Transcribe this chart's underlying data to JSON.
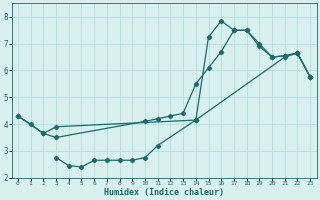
{
  "line1_x": [
    0,
    1,
    2,
    3,
    10,
    11,
    12,
    13,
    14,
    15,
    16,
    17,
    18,
    19,
    20,
    21,
    22,
    23
  ],
  "line1_y": [
    4.3,
    4.0,
    3.65,
    3.5,
    4.1,
    4.2,
    4.3,
    4.4,
    5.5,
    6.1,
    6.7,
    7.5,
    7.5,
    7.0,
    6.5,
    6.55,
    6.65,
    5.75
  ],
  "line2_x": [
    0,
    2,
    3,
    14,
    15,
    16,
    17,
    18,
    19,
    20,
    21,
    22,
    23
  ],
  "line2_y": [
    4.3,
    3.65,
    3.9,
    4.15,
    7.25,
    7.85,
    7.5,
    7.5,
    6.9,
    6.5,
    6.55,
    6.65,
    5.75
  ],
  "line3_x": [
    3,
    4,
    5,
    6,
    7,
    8,
    9,
    10,
    11,
    14,
    21,
    22,
    23
  ],
  "line3_y": [
    2.75,
    2.45,
    2.4,
    2.65,
    2.65,
    2.65,
    2.65,
    2.75,
    3.2,
    4.15,
    6.5,
    6.65,
    5.75
  ],
  "teal_color": "#1a6b6b",
  "bg_color": "#d8f0f0",
  "grid_color": "#b0d8d8",
  "xlabel": "Humidex (Indice chaleur)",
  "xlim": [
    -0.5,
    23.5
  ],
  "ylim": [
    2.0,
    8.5
  ],
  "xticks": [
    0,
    1,
    2,
    3,
    4,
    5,
    6,
    7,
    8,
    9,
    10,
    11,
    12,
    13,
    14,
    15,
    16,
    17,
    18,
    19,
    20,
    21,
    22,
    23
  ],
  "yticks": [
    2,
    3,
    4,
    5,
    6,
    7,
    8
  ],
  "marker": "D",
  "markersize": 2.2,
  "linewidth": 0.9
}
